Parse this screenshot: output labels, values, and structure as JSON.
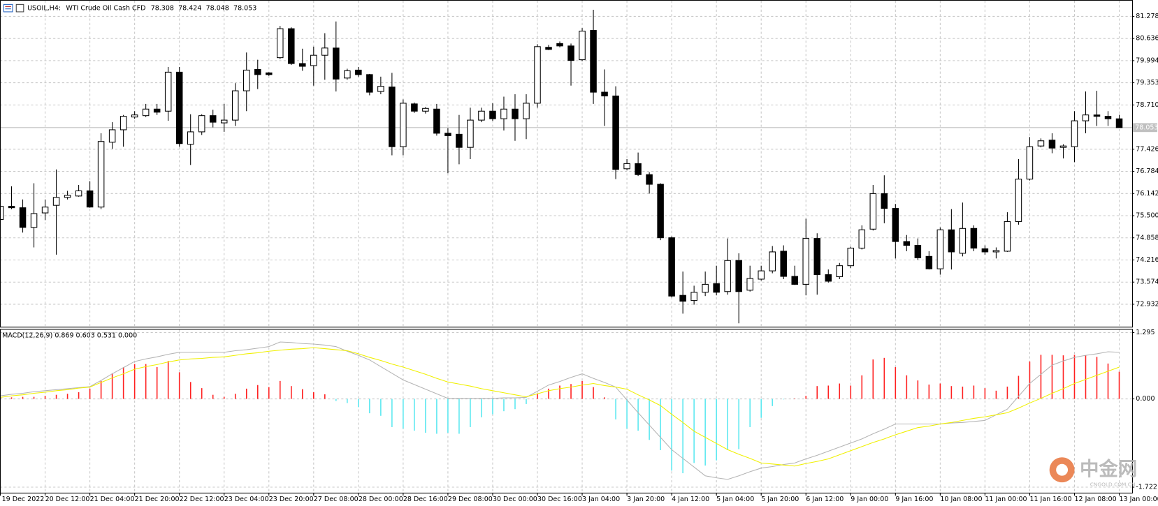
{
  "chart_data": [
    {
      "type": "candlestick",
      "title": "USOIL,H4:",
      "subtitle": "WTI Crude Oil Cash CFD",
      "categories": [
        "19 Dec 2022",
        null,
        null,
        null,
        "20 Dec 12:00",
        null,
        null,
        null,
        "21 Dec 04:00",
        null,
        null,
        null,
        "21 Dec 20:00",
        null,
        null,
        null,
        "22 Dec 12:00",
        null,
        null,
        null,
        "23 Dec 04:00",
        null,
        null,
        null,
        "23 Dec 20:00",
        null,
        null,
        null,
        "27 Dec 08:00",
        null,
        null,
        null,
        "28 Dec 00:00",
        null,
        null,
        null,
        "28 Dec 16:00",
        null,
        null,
        null,
        "29 Dec 08:00",
        null,
        null,
        null,
        "30 Dec 00:00",
        null,
        null,
        null,
        "30 Dec 16:00",
        null,
        null,
        null,
        "3 Jan 04:00",
        null,
        null,
        null,
        "3 Jan 20:00",
        null,
        null,
        null,
        "4 Jan 12:00",
        null,
        null,
        null,
        "5 Jan 04:00",
        null,
        null,
        null,
        "5 Jan 20:00",
        null,
        null,
        null,
        "6 Jan 12:00",
        null,
        null,
        null,
        "9 Jan 00:00",
        null,
        null,
        null,
        "9 Jan 16:00",
        null,
        null,
        null,
        "10 Jan 08:00",
        null,
        null,
        null,
        "11 Jan 00:00",
        null,
        null,
        null,
        "11 Jan 16:00",
        null,
        null,
        null,
        "12 Jan 08:00",
        null,
        null,
        null,
        "13 Jan 00:00"
      ],
      "open": [
        75.39,
        75.77,
        75.73,
        75.16,
        75.58,
        75.8,
        76.03,
        76.07,
        76.22,
        75.75,
        77.63,
        77.99,
        78.36,
        78.4,
        78.59,
        78.53,
        79.66,
        77.57,
        77.93,
        78.4,
        78.19,
        78.27,
        79.12,
        79.74,
        79.64,
        80.08,
        80.92,
        79.91,
        79.85,
        80.15,
        80.36,
        79.49,
        79.72,
        79.59,
        79.1,
        79.23,
        77.5,
        78.74,
        78.53,
        78.59,
        77.89,
        77.86,
        77.48,
        78.27,
        78.53,
        78.31,
        78.59,
        78.31,
        78.76,
        80.38,
        80.49,
        80.42,
        80.02,
        80.87,
        79.08,
        78.97,
        76.86,
        77.01,
        76.69,
        76.41,
        74.86,
        73.19,
        73.04,
        73.28,
        73.53,
        73.3,
        74.2,
        73.34,
        73.66,
        73.9,
        74.47,
        73.74,
        73.51,
        74.84,
        73.79,
        73.73,
        74.05,
        74.56,
        75.11,
        76.14,
        75.71,
        74.75,
        74.64,
        74.32,
        73.96,
        75.09,
        74.41,
        75.13,
        74.54,
        74.45,
        74.47,
        75.33,
        76.56,
        77.52,
        77.69,
        77.48,
        77.5,
        78.25,
        78.42,
        78.38,
        78.308
      ],
      "high": [
        75.8,
        76.35,
        75.97,
        76.44,
        75.97,
        76.84,
        76.22,
        76.39,
        76.5,
        77.89,
        78.21,
        78.42,
        78.53,
        78.74,
        78.74,
        79.81,
        79.81,
        78.44,
        78.44,
        78.57,
        78.74,
        79.34,
        80.23,
        80.02,
        79.66,
        81.0,
        80.96,
        80.34,
        80.4,
        80.79,
        81.13,
        79.76,
        79.81,
        79.61,
        79.53,
        79.64,
        78.87,
        78.78,
        78.65,
        78.74,
        78.04,
        78.42,
        78.63,
        78.63,
        78.76,
        78.95,
        79.02,
        79.02,
        80.47,
        80.45,
        80.55,
        80.49,
        80.94,
        81.47,
        79.74,
        79.25,
        77.14,
        77.33,
        76.76,
        76.44,
        74.9,
        73.88,
        73.47,
        73.88,
        74.05,
        74.84,
        74.41,
        74.05,
        74.05,
        74.62,
        74.64,
        74.05,
        75.41,
        74.99,
        73.94,
        74.13,
        74.6,
        75.22,
        76.39,
        76.67,
        75.84,
        74.94,
        74.84,
        74.47,
        75.16,
        75.69,
        75.88,
        75.22,
        74.64,
        74.58,
        75.6,
        77.14,
        77.78,
        77.74,
        77.89,
        77.57,
        78.53,
        79.1,
        79.12,
        78.53,
        78.424
      ],
      "low": [
        75.37,
        75.69,
        75.01,
        74.58,
        75.37,
        74.37,
        75.97,
        76.05,
        75.73,
        75.69,
        77.44,
        77.5,
        78.31,
        78.36,
        78.42,
        78.25,
        77.5,
        76.97,
        77.84,
        78.06,
        77.93,
        78.1,
        78.53,
        79.17,
        79.55,
        80.04,
        79.87,
        79.7,
        79.27,
        79.44,
        79.1,
        79.44,
        79.53,
        78.99,
        79.02,
        77.25,
        77.25,
        78.48,
        78.46,
        77.82,
        76.73,
        76.99,
        77.14,
        78.21,
        78.25,
        77.97,
        77.67,
        77.72,
        78.63,
        80.3,
        80.38,
        79.27,
        79.98,
        78.74,
        78.1,
        76.56,
        76.82,
        76.65,
        76.14,
        74.79,
        73.13,
        72.66,
        72.92,
        73.17,
        73.19,
        73.21,
        72.38,
        73.3,
        73.62,
        73.83,
        73.66,
        73.49,
        73.19,
        73.21,
        73.56,
        73.66,
        73.98,
        74.52,
        75.07,
        75.28,
        74.26,
        74.47,
        74.22,
        73.94,
        73.79,
        73.94,
        74.32,
        74.47,
        74.37,
        74.26,
        74.45,
        75.24,
        76.52,
        77.48,
        77.31,
        77.16,
        77.05,
        77.89,
        78.1,
        78.1,
        78.048
      ],
      "close": [
        75.77,
        75.73,
        75.16,
        75.56,
        75.75,
        76.03,
        76.09,
        76.22,
        75.75,
        77.65,
        77.99,
        78.38,
        78.42,
        78.59,
        78.5,
        79.66,
        77.59,
        77.93,
        78.4,
        78.21,
        78.27,
        79.12,
        79.72,
        79.59,
        79.59,
        80.92,
        79.91,
        79.83,
        80.15,
        80.36,
        79.46,
        79.7,
        79.59,
        79.08,
        79.25,
        77.5,
        78.76,
        78.53,
        78.61,
        77.89,
        77.82,
        77.48,
        78.27,
        78.53,
        78.31,
        78.59,
        78.31,
        78.76,
        80.4,
        80.32,
        80.42,
        80.0,
        80.85,
        79.08,
        78.97,
        76.84,
        77.01,
        76.69,
        76.41,
        74.86,
        73.17,
        73.02,
        73.28,
        73.51,
        73.28,
        74.2,
        73.3,
        73.68,
        73.9,
        74.45,
        73.74,
        73.51,
        74.84,
        73.79,
        73.6,
        74.05,
        74.56,
        75.09,
        76.14,
        75.71,
        74.75,
        74.64,
        74.28,
        73.96,
        75.09,
        74.45,
        75.13,
        74.56,
        74.45,
        74.49,
        75.33,
        76.56,
        77.5,
        77.67,
        77.46,
        77.52,
        78.25,
        78.42,
        78.38,
        78.31,
        78.053
      ],
      "ylim": [
        72.28,
        81.73
      ],
      "yticks": [
        81.278,
        80.636,
        79.994,
        79.353,
        {
          "value": 78.71,
          "label": "78.710"
        },
        77.426,
        76.784,
        76.142,
        {
          "value": 75.5,
          "label": "75.500"
        },
        74.858,
        74.216,
        73.574,
        72.932
      ],
      "grid": true,
      "up_color": "#ffffff",
      "down_color": "#000000",
      "last_price_color": "#c0c0c0"
    },
    {
      "type": "macd",
      "title": "MACD(12,26,9) 0.869 0.603 0.531 0.000",
      "series": [
        {
          "kind": "bar",
          "color": "#ff2020",
          "negative_color": "#5ce8f0",
          "values": [
            0.03,
            0.03,
            0.04,
            0.04,
            0.06,
            0.08,
            0.1,
            0.13,
            0.2,
            0.35,
            0.5,
            0.62,
            0.68,
            0.68,
            0.62,
            0.74,
            0.52,
            0.33,
            0.21,
            0.08,
            0.04,
            0.1,
            0.2,
            0.27,
            0.23,
            0.35,
            0.25,
            0.19,
            0.13,
            0.09,
            -0.04,
            -0.08,
            -0.16,
            -0.28,
            -0.33,
            -0.55,
            -0.58,
            -0.62,
            -0.66,
            -0.68,
            -0.66,
            -0.68,
            -0.55,
            -0.36,
            -0.3,
            -0.24,
            -0.2,
            -0.1,
            0.1,
            0.2,
            0.26,
            0.29,
            0.35,
            0.23,
            0.03,
            -0.4,
            -0.58,
            -0.62,
            -0.8,
            -1.0,
            -1.4,
            -1.45,
            -1.25,
            -1.3,
            -1.2,
            -1.0,
            -0.98,
            -0.55,
            -0.37,
            -0.14,
            -0.01,
            0.01,
            0.06,
            0.25,
            0.26,
            0.3,
            0.26,
            0.46,
            0.77,
            0.8,
            0.62,
            0.46,
            0.36,
            0.28,
            0.3,
            0.25,
            0.24,
            0.26,
            0.21,
            0.16,
            0.24,
            0.45,
            0.73,
            0.86,
            0.86,
            0.85,
            0.86,
            0.85,
            0.82,
            0.69,
            0.53
          ]
        },
        {
          "kind": "line",
          "color": "#b4b4b4",
          "values": [
            0.06,
            0.09,
            0.11,
            0.14,
            0.16,
            0.18,
            0.2,
            0.22,
            0.24,
            0.36,
            0.49,
            0.61,
            0.73,
            0.78,
            0.82,
            0.87,
            0.91,
            0.91,
            0.91,
            0.91,
            0.91,
            0.94,
            0.96,
            0.99,
            1.02,
            1.11,
            1.1,
            1.08,
            1.07,
            1.05,
            1.02,
            0.93,
            0.85,
            0.76,
            0.63,
            0.5,
            0.37,
            0.28,
            0.19,
            0.1,
            0.01,
            0.01,
            0.01,
            0.01,
            0.01,
            0.02,
            0.02,
            0.03,
            0.15,
            0.27,
            0.34,
            0.42,
            0.49,
            0.4,
            0.32,
            0.23,
            -0.02,
            -0.27,
            -0.51,
            -0.75,
            -0.99,
            -1.16,
            -1.33,
            -1.5,
            -1.54,
            -1.57,
            -1.5,
            -1.42,
            -1.35,
            -1.32,
            -1.28,
            -1.25,
            -1.17,
            -1.1,
            -1.02,
            -0.94,
            -0.86,
            -0.78,
            -0.68,
            -0.59,
            -0.49,
            -0.49,
            -0.49,
            -0.49,
            -0.49,
            -0.47,
            -0.46,
            -0.44,
            -0.42,
            -0.31,
            -0.2,
            0.05,
            0.3,
            0.48,
            0.66,
            0.74,
            0.81,
            0.85,
            0.88,
            0.92,
            0.91
          ]
        },
        {
          "kind": "line",
          "color": "#f0f000",
          "values": [
            0.03,
            0.06,
            0.08,
            0.11,
            0.13,
            0.16,
            0.18,
            0.21,
            0.23,
            0.32,
            0.41,
            0.49,
            0.58,
            0.63,
            0.67,
            0.72,
            0.76,
            0.78,
            0.79,
            0.81,
            0.82,
            0.85,
            0.88,
            0.9,
            0.93,
            0.95,
            0.97,
            0.98,
            1.0,
            0.98,
            0.96,
            0.94,
            0.88,
            0.81,
            0.75,
            0.68,
            0.62,
            0.55,
            0.48,
            0.4,
            0.33,
            0.29,
            0.25,
            0.2,
            0.16,
            0.12,
            0.08,
            0.04,
            0.1,
            0.16,
            0.2,
            0.23,
            0.27,
            0.3,
            0.26,
            0.23,
            0.19,
            0.08,
            -0.02,
            -0.13,
            -0.3,
            -0.46,
            -0.63,
            -0.75,
            -0.87,
            -0.99,
            -1.08,
            -1.16,
            -1.25,
            -1.27,
            -1.29,
            -1.31,
            -1.26,
            -1.22,
            -1.17,
            -1.09,
            -1.01,
            -0.93,
            -0.85,
            -0.78,
            -0.7,
            -0.63,
            -0.56,
            -0.53,
            -0.49,
            -0.46,
            -0.42,
            -0.38,
            -0.35,
            -0.31,
            -0.27,
            -0.18,
            -0.08,
            0.01,
            0.11,
            0.2,
            0.3,
            0.38,
            0.46,
            0.54,
            0.62
          ]
        }
      ],
      "ylim": [
        -1.83,
        1.35
      ],
      "yticks": [
        1.295,
        {
          "value": 0,
          "label": "0.000"
        },
        -1.722
      ],
      "grid": true
    }
  ],
  "watermark": {
    "name": "中金网",
    "site": "CNGOLD.COM.CN"
  }
}
